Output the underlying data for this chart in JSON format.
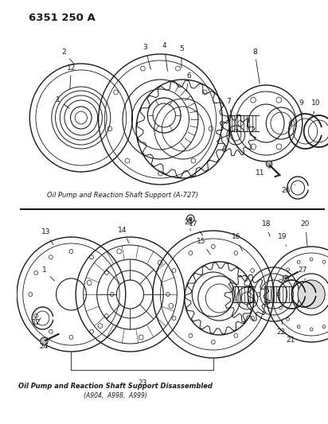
{
  "title": "6351 250 A",
  "bg_color": "#ffffff",
  "line_color": "#1a1a1a",
  "caption1": "Oil Pump and Reaction Shaft Support (A-727)",
  "caption2": "Oil Pump and Reaction Shaft Support Disassembled",
  "caption3": "(A904,  A998,  A999)",
  "fig_w": 4.12,
  "fig_h": 5.33,
  "dpi": 100
}
